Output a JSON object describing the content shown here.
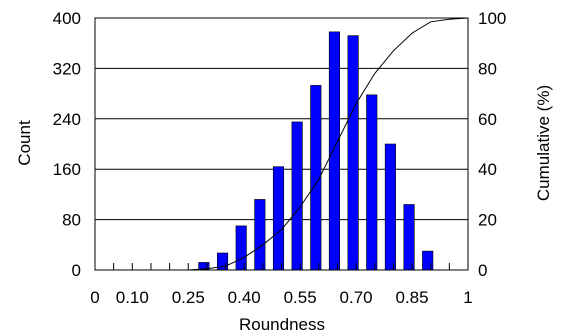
{
  "chart_data": {
    "type": "bar",
    "title": "",
    "xlabel": "Roundness",
    "ylabel": "Count",
    "y2label": "Cumulative (%)",
    "xlim": [
      0,
      1
    ],
    "ylim": [
      0,
      400
    ],
    "y2lim": [
      0,
      100
    ],
    "grid": true,
    "x_ticks": [
      0,
      0.05,
      0.1,
      0.15,
      0.2,
      0.25,
      0.3,
      0.35,
      0.4,
      0.45,
      0.5,
      0.55,
      0.6,
      0.65,
      0.7,
      0.75,
      0.8,
      0.85,
      0.9,
      0.95,
      1.0
    ],
    "x_tick_labels": [
      {
        "value": 0,
        "label": "0"
      },
      {
        "value": 0.1,
        "label": "0.10"
      },
      {
        "value": 0.25,
        "label": "0.25"
      },
      {
        "value": 0.4,
        "label": "0.40"
      },
      {
        "value": 0.55,
        "label": "0.55"
      },
      {
        "value": 0.7,
        "label": "0.70"
      },
      {
        "value": 0.85,
        "label": "0.85"
      },
      {
        "value": 1,
        "label": "1"
      }
    ],
    "y_ticks": [
      0,
      80,
      160,
      240,
      320,
      400
    ],
    "y2_ticks": [
      0,
      20,
      40,
      60,
      80,
      100
    ],
    "series": [
      {
        "type": "bar",
        "color": "#0000ff",
        "x": [
          0.3,
          0.35,
          0.4,
          0.45,
          0.5,
          0.55,
          0.6,
          0.65,
          0.7,
          0.75,
          0.8,
          0.85,
          0.9,
          0.95
        ],
        "values": [
          12,
          27,
          70,
          112,
          164,
          235,
          293,
          378,
          372,
          278,
          200,
          104,
          30,
          0
        ]
      },
      {
        "type": "line",
        "axis": "right",
        "color": "#000000",
        "x": [
          0.25,
          0.3,
          0.35,
          0.4,
          0.45,
          0.5,
          0.55,
          0.6,
          0.65,
          0.7,
          0.75,
          0.8,
          0.85,
          0.9,
          0.95,
          1.0
        ],
        "values": [
          0,
          0.5,
          1.5,
          5,
          10,
          16,
          25,
          36,
          51,
          66,
          78,
          87,
          94,
          98.5,
          99.5,
          100
        ]
      }
    ]
  }
}
